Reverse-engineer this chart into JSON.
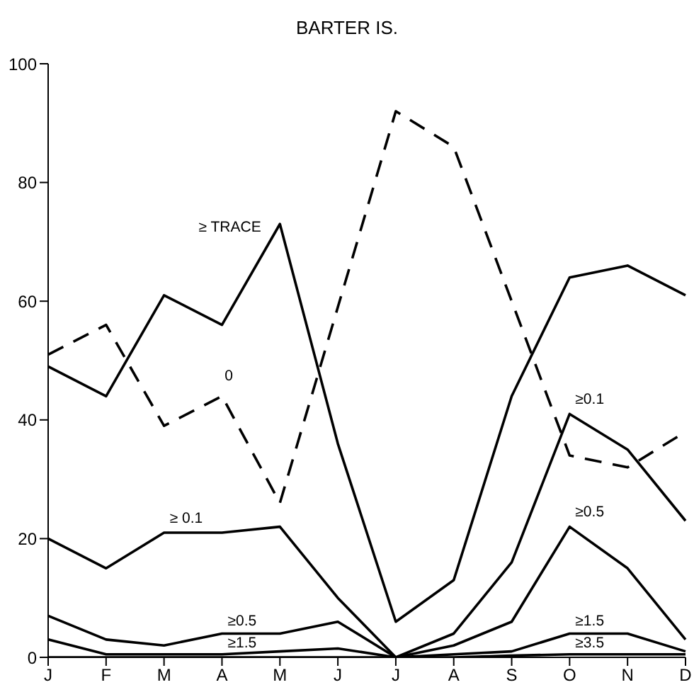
{
  "chart_data": {
    "type": "line",
    "title": "BARTER IS.",
    "categories": [
      "J",
      "F",
      "M",
      "A",
      "M",
      "J",
      "J",
      "A",
      "S",
      "O",
      "N",
      "D"
    ],
    "series": [
      {
        "color": "#000000",
        "line_style": "dashed",
        "values": [
          51,
          56,
          39,
          44,
          26,
          59,
          92,
          86,
          60,
          34,
          32,
          38
        ]
      },
      {
        "color": "#000000",
        "line_style": "solid",
        "values": [
          49,
          44,
          61,
          56,
          73,
          36,
          6,
          13,
          44,
          64,
          66,
          61
        ]
      },
      {
        "color": "#000000",
        "line_style": "solid",
        "values": [
          20,
          15,
          21,
          21,
          22,
          10,
          0,
          4,
          16,
          41,
          35,
          23
        ]
      },
      {
        "color": "#000000",
        "line_style": "solid",
        "values": [
          7,
          3,
          2,
          4,
          4,
          6,
          0,
          2,
          6,
          22,
          15,
          3
        ]
      },
      {
        "color": "#000000",
        "line_style": "solid",
        "values": [
          3,
          0.5,
          0.5,
          0.5,
          1,
          1.5,
          0,
          0.5,
          1,
          4,
          4,
          1
        ]
      },
      {
        "color": "#000000",
        "line_style": "solid",
        "values": [
          0,
          0,
          0,
          0,
          0,
          0,
          0,
          0,
          0.3,
          0.5,
          0.5,
          0.5
        ]
      }
    ],
    "ylim": [
      0,
      100
    ],
    "yticks": [
      0,
      20,
      40,
      60,
      80,
      100
    ],
    "grid": false,
    "legend": false,
    "marker": "none",
    "annotations": [
      "≥ TRACE",
      "0",
      {
        "text": "≥ 0.1",
        "x": "M",
        "y": 22
      },
      {
        "text": "≥0.5",
        "x": "A",
        "y": 4.6
      },
      {
        "text": "≥1.5",
        "x": "A",
        "y": 0.9
      },
      {
        "text": "≥0.1",
        "x": "O",
        "y": 42
      },
      {
        "text": "≥0.5",
        "x": "O",
        "y": 23
      },
      {
        "text": "≥1.5",
        "x": "O",
        "y": 4.6
      },
      {
        "text": "≥3.5",
        "x": "O",
        "y": 0.9
      }
    ]
  }
}
